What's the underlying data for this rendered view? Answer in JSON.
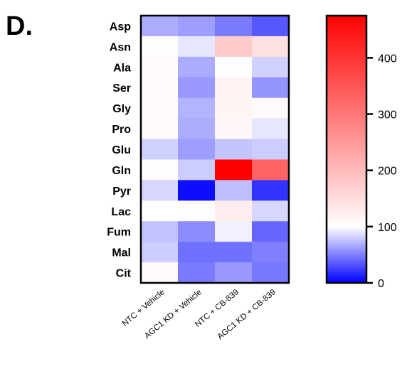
{
  "panel_label": "D.",
  "chart_data": {
    "type": "heatmap",
    "title": "",
    "rows": [
      "Asp",
      "Asn",
      "Ala",
      "Ser",
      "Gly",
      "Pro",
      "Glu",
      "Gln",
      "Pyr",
      "Lac",
      "Fum",
      "Mal",
      "Cit"
    ],
    "columns": [
      "NTC + Vehicle",
      "AGC1 KD + Vehicle",
      "NTC + CB-839",
      "AGC1 KD + CB-839"
    ],
    "values": [
      [
        68,
        62,
        48,
        34
      ],
      [
        104,
        90,
        178,
        146
      ],
      [
        106,
        67,
        102,
        82
      ],
      [
        106,
        60,
        118,
        58
      ],
      [
        108,
        70,
        114,
        108
      ],
      [
        108,
        68,
        112,
        90
      ],
      [
        82,
        62,
        77,
        80
      ],
      [
        104,
        80,
        475,
        330
      ],
      [
        84,
        5,
        74,
        20
      ],
      [
        100,
        102,
        126,
        84
      ],
      [
        76,
        55,
        94,
        40
      ],
      [
        80,
        44,
        44,
        50
      ],
      [
        108,
        48,
        60,
        47
      ]
    ],
    "colorbar": {
      "min": 0,
      "max": 475,
      "ticks": [
        0,
        100,
        200,
        300,
        400
      ],
      "colors": {
        "low": "#0000ff",
        "mid": "#ffffff",
        "high": "#ff0000"
      },
      "mid_value": 100
    }
  }
}
